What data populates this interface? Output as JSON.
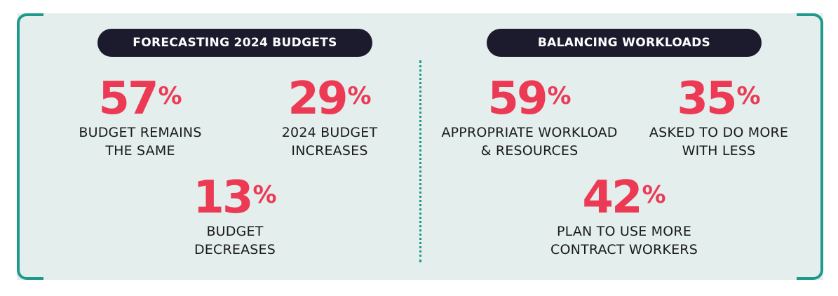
{
  "colors": {
    "panel_background": "#e4eeed",
    "bracket": "#1e9a8d",
    "pill_background": "#1c1b2e",
    "pill_text": "#ffffff",
    "stat_number": "#ec3a55",
    "label_text": "#1a1a1a"
  },
  "left_section": {
    "title": "FORECASTING 2024 BUDGETS",
    "stats": [
      {
        "value": "57",
        "symbol": "%",
        "line1": "BUDGET REMAINS",
        "line2": "THE SAME"
      },
      {
        "value": "29",
        "symbol": "%",
        "line1": "2024 BUDGET",
        "line2": "INCREASES"
      },
      {
        "value": "13",
        "symbol": "%",
        "line1": "BUDGET",
        "line2": "DECREASES"
      }
    ]
  },
  "right_section": {
    "title": "BALANCING WORKLOADS",
    "stats": [
      {
        "value": "59",
        "symbol": "%",
        "line1": "APPROPRIATE WORKLOAD",
        "line2": "& RESOURCES"
      },
      {
        "value": "35",
        "symbol": "%",
        "line1": "ASKED TO DO MORE",
        "line2": "WITH LESS"
      },
      {
        "value": "42",
        "symbol": "%",
        "line1": "PLAN TO USE MORE",
        "line2": "CONTRACT WORKERS"
      }
    ]
  }
}
